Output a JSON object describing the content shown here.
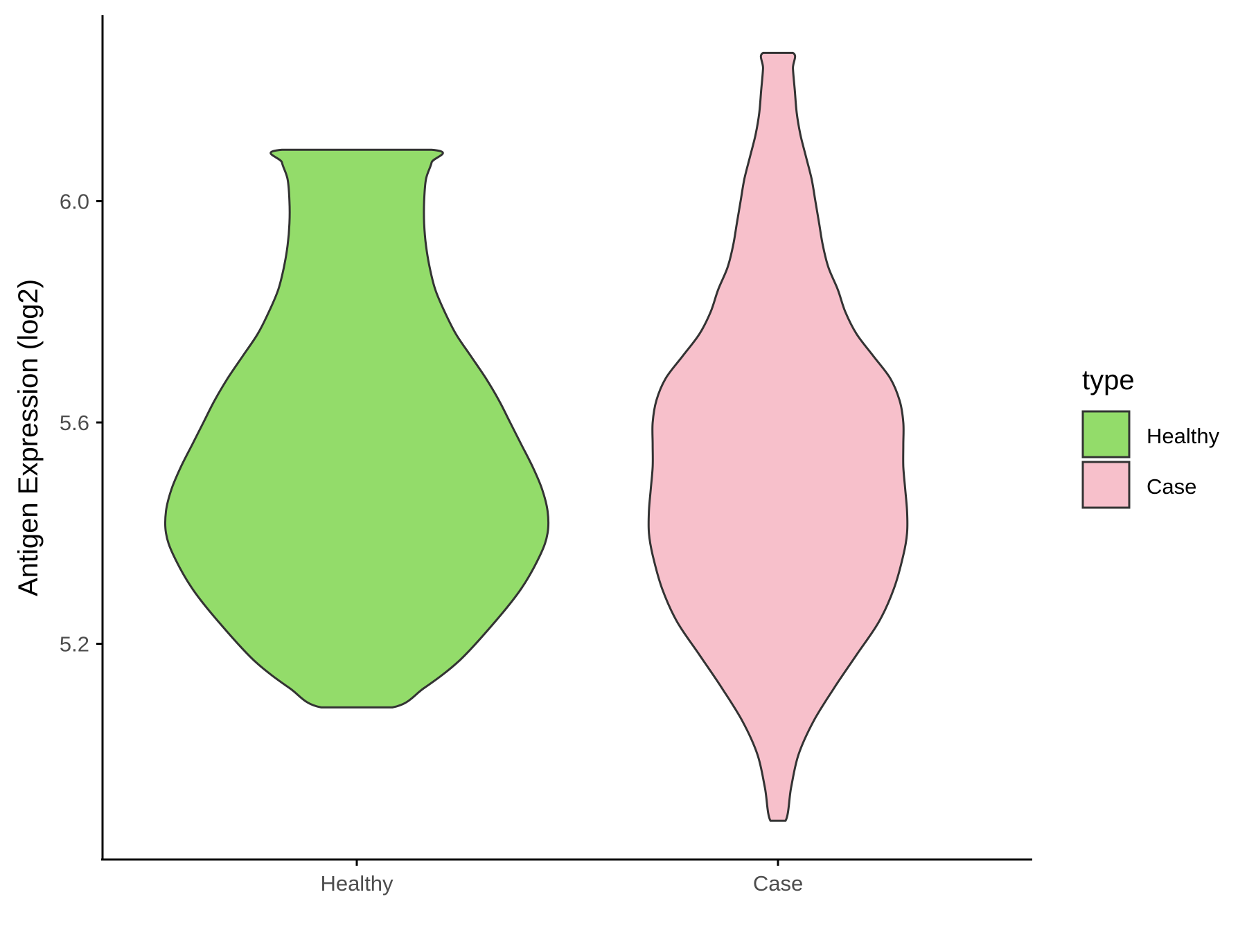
{
  "chart_data": {
    "type": "violin",
    "title": "",
    "xlabel": "",
    "ylabel": "Antigen Expression (log2)",
    "ylim": [
      4.82,
      6.36
    ],
    "yticks": [
      5.2,
      5.6,
      6.0
    ],
    "ytick_labels": [
      "5.2",
      "5.6",
      "6.0"
    ],
    "categories": [
      "Healthy",
      "Case"
    ],
    "grid": false,
    "legend": {
      "title": "type",
      "position": "right",
      "entries": [
        {
          "label": "Healthy",
          "color": "#93DC6A"
        },
        {
          "label": "Case",
          "color": "#F7C0CB"
        }
      ]
    },
    "series": [
      {
        "category": "Healthy",
        "color": "#93DC6A",
        "min": 5.085,
        "max": 6.093,
        "density": [
          [
            5.085,
            0.19
          ],
          [
            5.12,
            0.36
          ],
          [
            5.17,
            0.55
          ],
          [
            5.24,
            0.74
          ],
          [
            5.3,
            0.88
          ],
          [
            5.36,
            0.98
          ],
          [
            5.4,
            1.02
          ],
          [
            5.44,
            1.02
          ],
          [
            5.48,
            0.99
          ],
          [
            5.52,
            0.94
          ],
          [
            5.56,
            0.88
          ],
          [
            5.6,
            0.82
          ],
          [
            5.64,
            0.76
          ],
          [
            5.68,
            0.69
          ],
          [
            5.72,
            0.61
          ],
          [
            5.76,
            0.53
          ],
          [
            5.8,
            0.47
          ],
          [
            5.84,
            0.42
          ],
          [
            5.88,
            0.39
          ],
          [
            5.92,
            0.37
          ],
          [
            5.96,
            0.36
          ],
          [
            6.0,
            0.36
          ],
          [
            6.04,
            0.37
          ],
          [
            6.07,
            0.4
          ],
          [
            6.093,
            0.4
          ]
        ]
      },
      {
        "category": "Case",
        "color": "#F7C0CB",
        "min": 4.88,
        "max": 6.268,
        "density": [
          [
            4.88,
            0.04
          ],
          [
            4.94,
            0.07
          ],
          [
            5.0,
            0.11
          ],
          [
            5.06,
            0.19
          ],
          [
            5.12,
            0.3
          ],
          [
            5.18,
            0.42
          ],
          [
            5.24,
            0.54
          ],
          [
            5.3,
            0.62
          ],
          [
            5.36,
            0.67
          ],
          [
            5.4,
            0.69
          ],
          [
            5.44,
            0.69
          ],
          [
            5.48,
            0.68
          ],
          [
            5.52,
            0.67
          ],
          [
            5.56,
            0.67
          ],
          [
            5.6,
            0.67
          ],
          [
            5.64,
            0.65
          ],
          [
            5.68,
            0.6
          ],
          [
            5.72,
            0.51
          ],
          [
            5.76,
            0.42
          ],
          [
            5.8,
            0.36
          ],
          [
            5.84,
            0.32
          ],
          [
            5.88,
            0.27
          ],
          [
            5.92,
            0.24
          ],
          [
            5.96,
            0.22
          ],
          [
            6.0,
            0.2
          ],
          [
            6.04,
            0.18
          ],
          [
            6.08,
            0.15
          ],
          [
            6.12,
            0.12
          ],
          [
            6.16,
            0.1
          ],
          [
            6.2,
            0.09
          ],
          [
            6.24,
            0.08
          ],
          [
            6.268,
            0.08
          ]
        ]
      }
    ]
  }
}
